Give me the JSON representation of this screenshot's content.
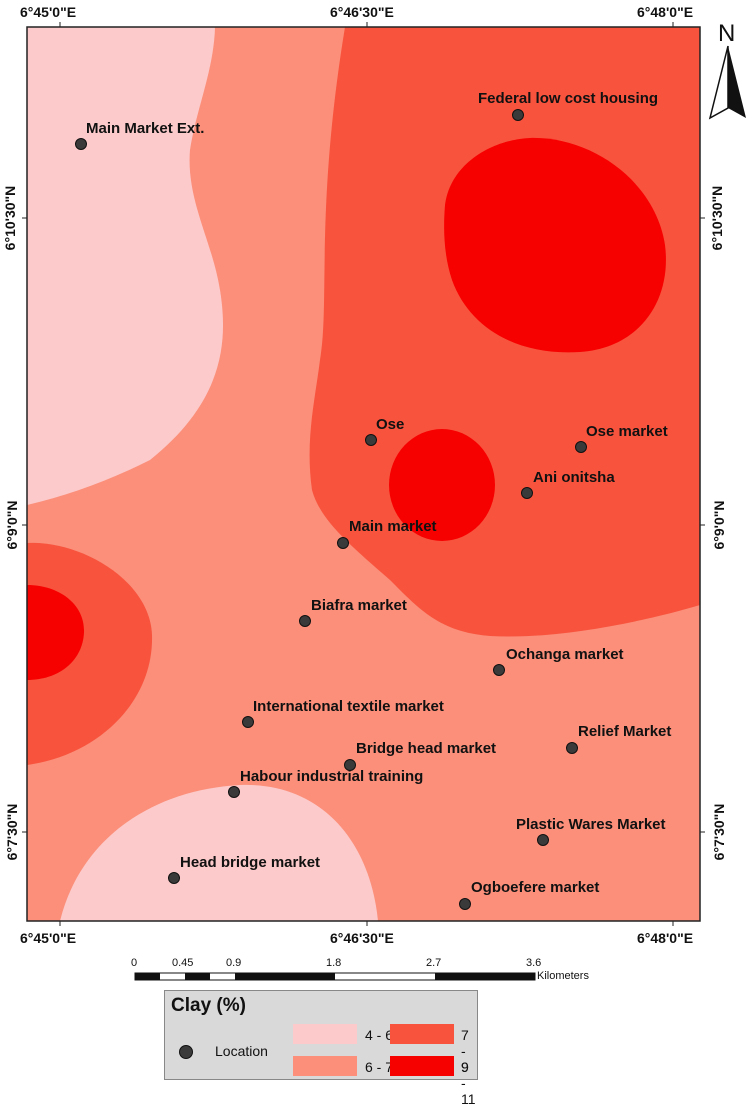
{
  "coords": {
    "top": [
      "6°45'0\"E",
      "6°46'30\"E",
      "6°48'0\"E"
    ],
    "bottom": [
      "6°45'0\"E",
      "6°46'30\"E",
      "6°48'0\"E"
    ],
    "left": [
      "6°10'30\"N",
      "6°9'0\"N",
      "6°7'30\"N"
    ],
    "right": [
      "6°10'30\"N",
      "6°9'0\"N",
      "6°7'30\"N"
    ]
  },
  "north_label": "N",
  "locations": [
    {
      "name": "Federal low cost housing"
    },
    {
      "name": "Main Market Ext."
    },
    {
      "name": "Ose"
    },
    {
      "name": "Ose market"
    },
    {
      "name": "Ani onitsha"
    },
    {
      "name": "Main market"
    },
    {
      "name": "Biafra market"
    },
    {
      "name": "Ochanga market"
    },
    {
      "name": "International textile market"
    },
    {
      "name": "Relief Market"
    },
    {
      "name": "Bridge head market"
    },
    {
      "name": "Habour industrial training"
    },
    {
      "name": "Plastic Wares Market"
    },
    {
      "name": "Head bridge market"
    },
    {
      "name": "Ogboefere market"
    }
  ],
  "scale": {
    "ticks": [
      "0",
      "0.45",
      "0.9",
      "1.8",
      "2.7",
      "3.6"
    ],
    "unit": "Kilometers"
  },
  "legend": {
    "title": "Clay (%)",
    "location_label": "Location",
    "classes": [
      {
        "label": "4 - 6",
        "color": "#fccaca"
      },
      {
        "label": "6 - 7",
        "color": "#fb8f7a"
      },
      {
        "label": "7 - 9",
        "color": "#f8533d"
      },
      {
        "label": "9 - 11",
        "color": "#f70000"
      }
    ]
  }
}
